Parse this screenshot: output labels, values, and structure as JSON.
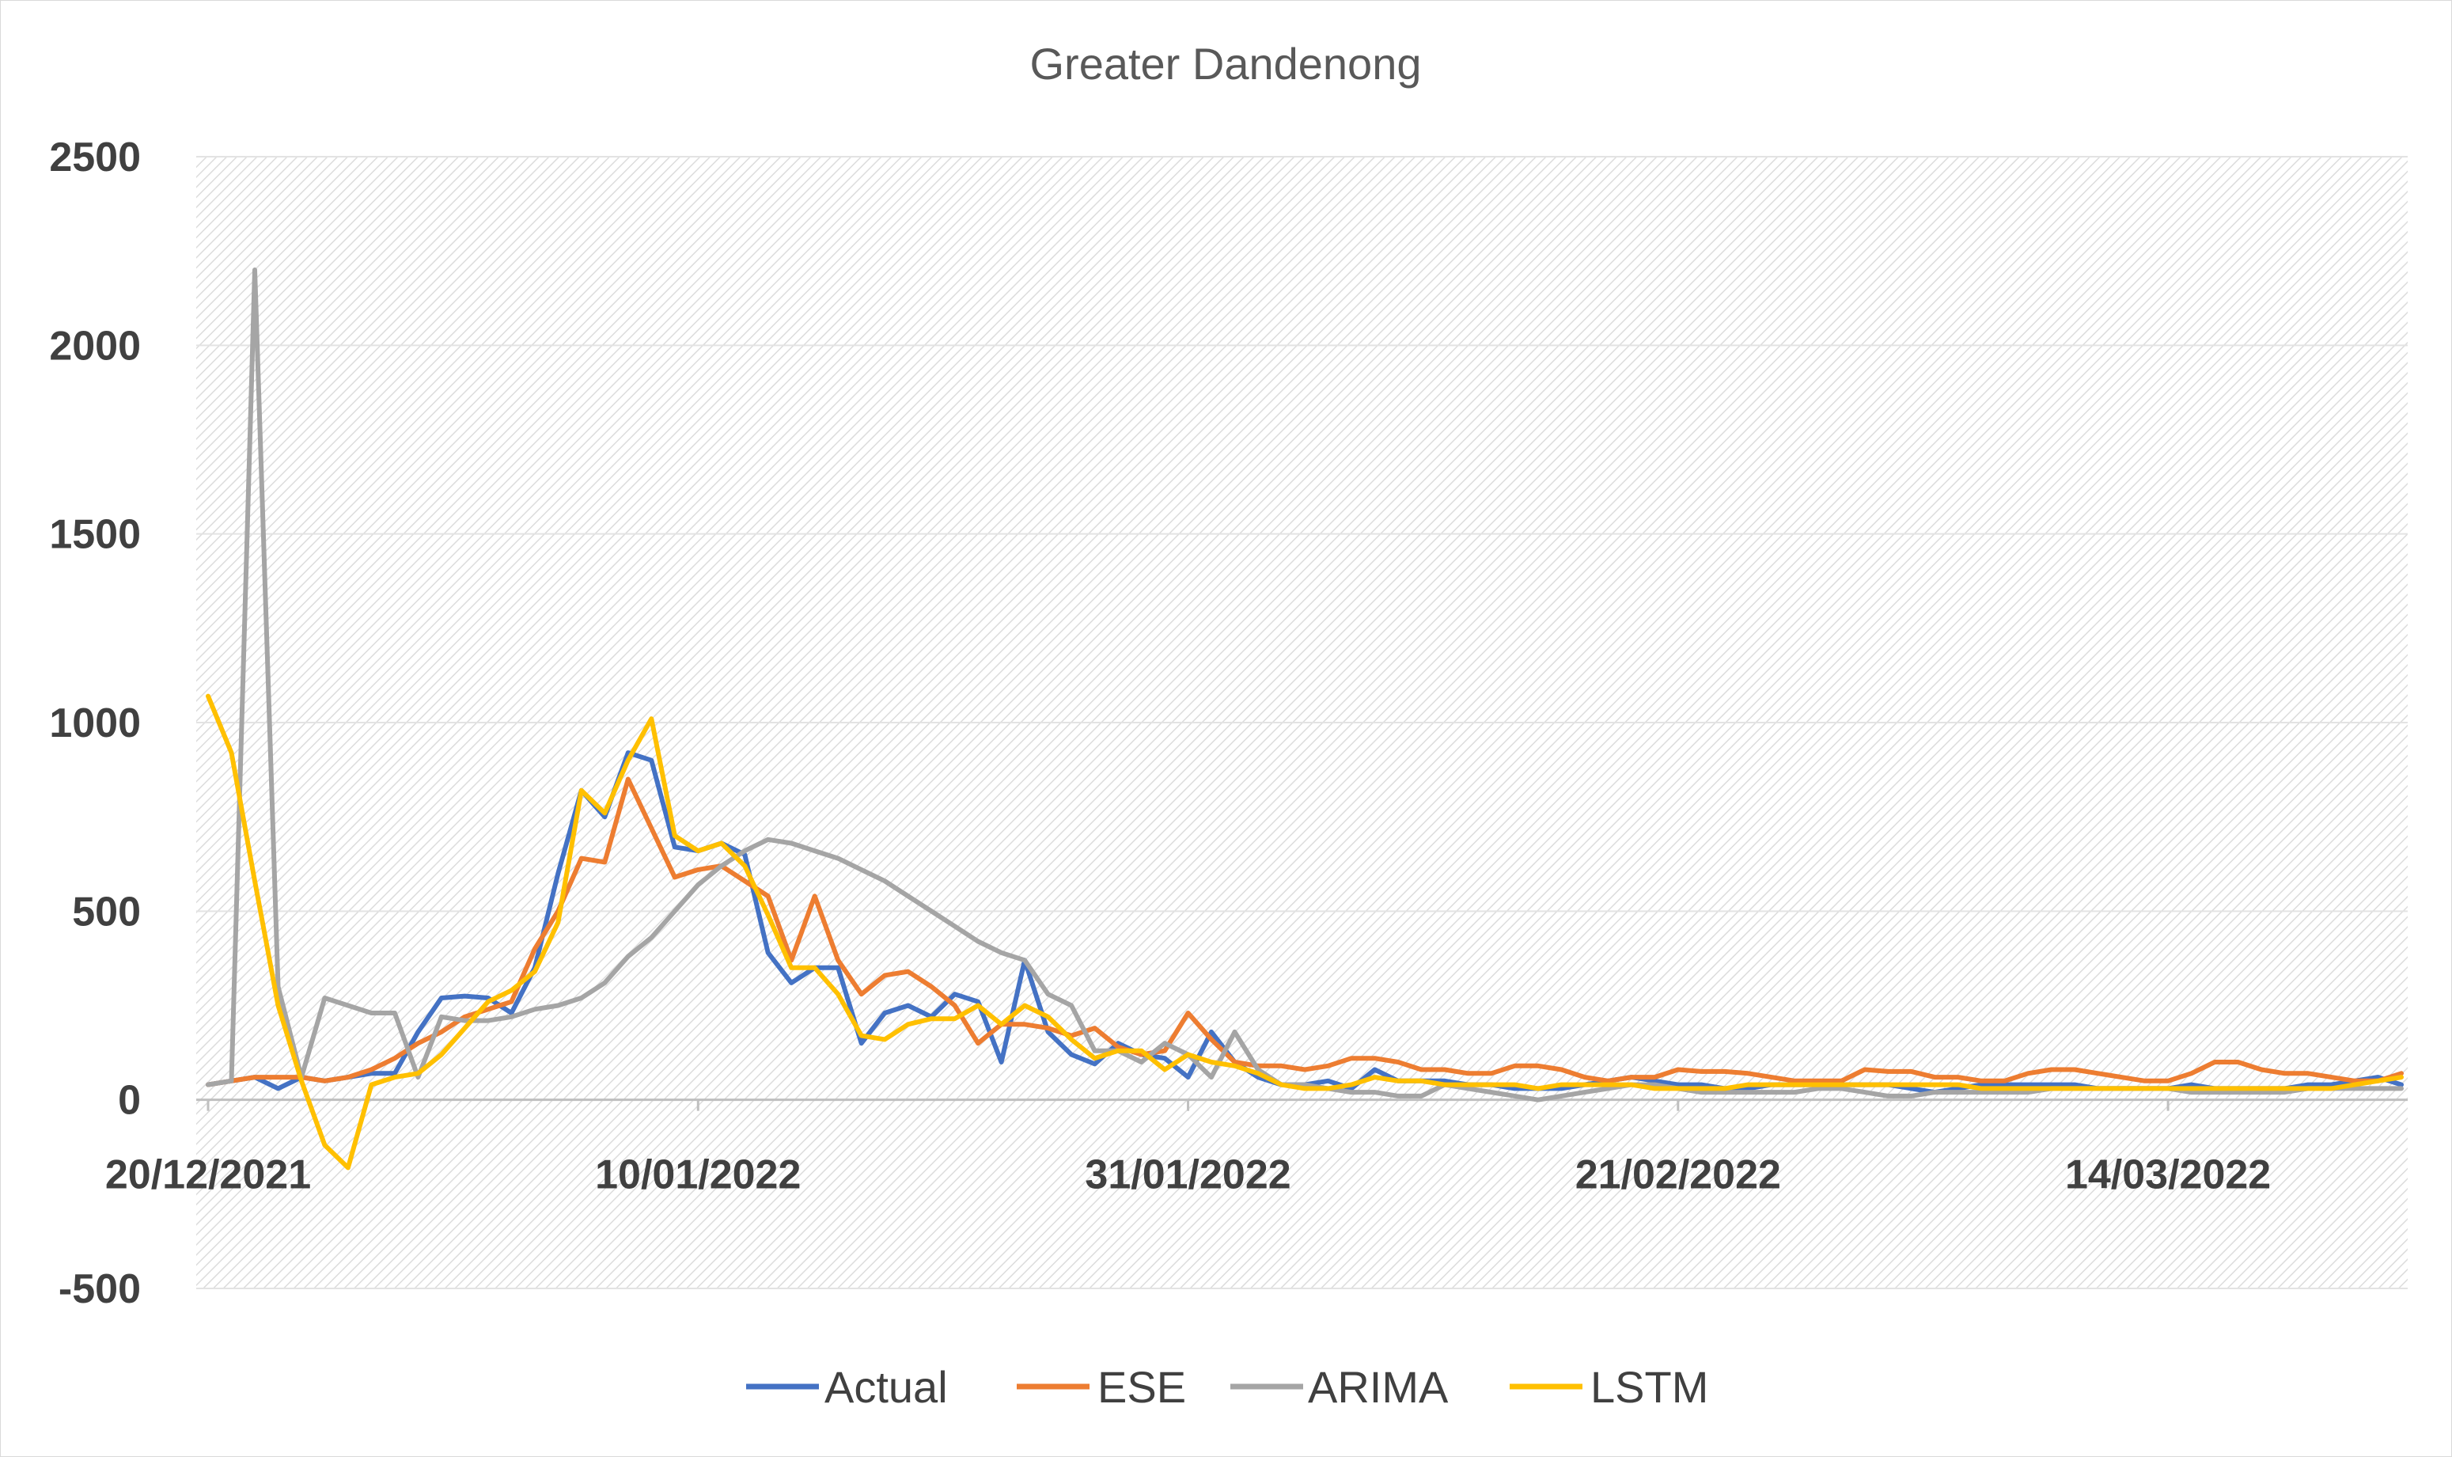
{
  "chart_data": {
    "type": "line",
    "title": "Greater Dandenong",
    "xlabel": "",
    "ylabel": "",
    "ylim": [
      -500,
      2500
    ],
    "yticks": [
      -500,
      0,
      500,
      1000,
      1500,
      2000,
      2500
    ],
    "x_start": "20/12/2021",
    "x_end": "24/03/2022",
    "x_tick_labels": [
      "20/12/2021",
      "10/01/2022",
      "31/01/2022",
      "21/02/2022",
      "14/03/2022"
    ],
    "grid": true,
    "legend_position": "bottom",
    "series": [
      {
        "name": "Actual",
        "color": "#4472C4",
        "values": [
          40,
          50,
          60,
          30,
          60,
          50,
          60,
          70,
          70,
          180,
          270,
          275,
          270,
          230,
          350,
          600,
          820,
          750,
          920,
          900,
          670,
          660,
          680,
          650,
          390,
          310,
          350,
          350,
          150,
          230,
          250,
          220,
          280,
          260,
          100,
          370,
          180,
          120,
          95,
          150,
          120,
          110,
          60,
          180,
          100,
          60,
          40,
          40,
          50,
          30,
          80,
          50,
          50,
          50,
          40,
          40,
          30,
          30,
          30,
          40,
          50,
          60,
          50,
          40,
          40,
          30,
          30,
          40,
          40,
          40,
          40,
          40,
          40,
          30,
          20,
          30,
          40,
          40,
          40,
          40,
          40,
          30,
          30,
          30,
          30,
          40,
          30,
          30,
          30,
          30,
          40,
          40,
          50,
          60,
          40
        ]
      },
      {
        "name": "ESE",
        "color": "#ED7D31",
        "values": [
          40,
          50,
          60,
          60,
          60,
          50,
          60,
          80,
          110,
          150,
          180,
          220,
          240,
          260,
          400,
          500,
          640,
          630,
          850,
          720,
          590,
          610,
          620,
          580,
          540,
          370,
          540,
          370,
          280,
          330,
          340,
          300,
          250,
          150,
          200,
          200,
          190,
          170,
          190,
          140,
          120,
          130,
          230,
          160,
          100,
          90,
          90,
          80,
          90,
          110,
          110,
          100,
          80,
          80,
          70,
          70,
          90,
          90,
          80,
          60,
          50,
          60,
          60,
          80,
          75,
          75,
          70,
          60,
          50,
          50,
          50,
          80,
          75,
          75,
          60,
          60,
          50,
          50,
          70,
          80,
          80,
          70,
          60,
          50,
          50,
          70,
          100,
          100,
          80,
          70,
          70,
          60,
          50,
          50,
          70
        ]
      },
      {
        "name": "ARIMA",
        "color": "#A5A5A5",
        "values": [
          40,
          50,
          2200,
          300,
          60,
          270,
          250,
          230,
          230,
          60,
          220,
          210,
          210,
          220,
          240,
          250,
          270,
          310,
          380,
          430,
          500,
          570,
          620,
          660,
          690,
          680,
          660,
          640,
          610,
          580,
          540,
          500,
          460,
          420,
          390,
          370,
          280,
          250,
          130,
          130,
          100,
          150,
          120,
          60,
          180,
          80,
          40,
          40,
          30,
          20,
          20,
          10,
          10,
          40,
          30,
          20,
          10,
          0,
          10,
          20,
          30,
          40,
          40,
          30,
          20,
          20,
          20,
          20,
          20,
          30,
          30,
          20,
          10,
          10,
          20,
          20,
          20,
          20,
          20,
          30,
          30,
          30,
          30,
          30,
          30,
          20,
          20,
          20,
          20,
          20,
          30,
          30,
          30,
          30,
          30
        ]
      },
      {
        "name": "LSTM",
        "color": "#FFC000",
        "values": [
          1070,
          920,
          580,
          250,
          50,
          -120,
          -180,
          40,
          60,
          70,
          120,
          190,
          260,
          290,
          340,
          470,
          820,
          760,
          900,
          1010,
          700,
          660,
          680,
          620,
          490,
          350,
          350,
          280,
          170,
          160,
          200,
          215,
          215,
          250,
          200,
          250,
          220,
          160,
          110,
          130,
          130,
          80,
          120,
          100,
          90,
          70,
          40,
          30,
          30,
          40,
          60,
          50,
          50,
          40,
          40,
          40,
          40,
          30,
          40,
          40,
          40,
          40,
          30,
          30,
          30,
          30,
          40,
          40,
          40,
          40,
          40,
          40,
          40,
          40,
          40,
          40,
          30,
          30,
          30,
          30,
          30,
          30,
          30,
          30,
          30,
          30,
          30,
          30,
          30,
          30,
          30,
          30,
          40,
          50,
          60
        ]
      }
    ]
  }
}
